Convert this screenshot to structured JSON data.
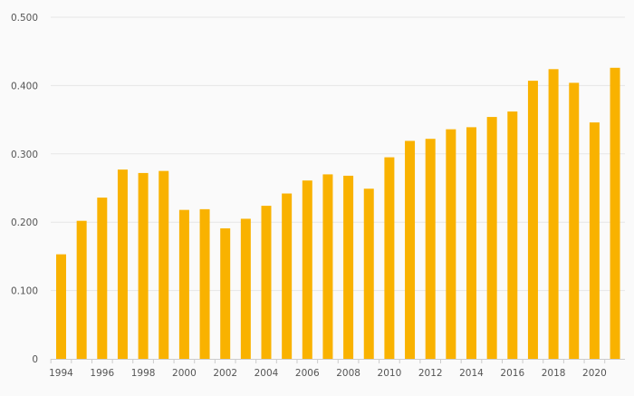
{
  "chart_data": {
    "type": "bar",
    "title": "",
    "xlabel": "",
    "ylabel": "",
    "ylim": [
      0,
      0.5
    ],
    "y_ticks": [
      "0",
      "0.100",
      "0.200",
      "0.300",
      "0.400",
      "0.500"
    ],
    "y_tick_values": [
      0,
      0.1,
      0.2,
      0.3,
      0.4,
      0.5
    ],
    "x_tick_labels": [
      "1994",
      "1996",
      "1998",
      "2000",
      "2002",
      "2004",
      "2006",
      "2008",
      "2010",
      "2012",
      "2014",
      "2016",
      "2018",
      "2020"
    ],
    "categories": [
      "1994",
      "1995",
      "1996",
      "1997",
      "1998",
      "1999",
      "2000",
      "2001",
      "2002",
      "2003",
      "2004",
      "2005",
      "2006",
      "2007",
      "2008",
      "2009",
      "2010",
      "2011",
      "2012",
      "2013",
      "2014",
      "2015",
      "2016",
      "2017",
      "2018",
      "2019",
      "2020",
      "2021"
    ],
    "values": [
      0.153,
      0.202,
      0.236,
      0.277,
      0.272,
      0.275,
      0.218,
      0.219,
      0.191,
      0.205,
      0.224,
      0.242,
      0.261,
      0.27,
      0.268,
      0.249,
      0.295,
      0.319,
      0.322,
      0.336,
      0.339,
      0.354,
      0.362,
      0.407,
      0.424,
      0.404,
      0.346,
      0.426
    ],
    "grid": true,
    "colors": {
      "bar": "#f9b200",
      "grid": "#e6e6e6",
      "axis": "#cccccc",
      "tick_text": "#555555"
    }
  }
}
